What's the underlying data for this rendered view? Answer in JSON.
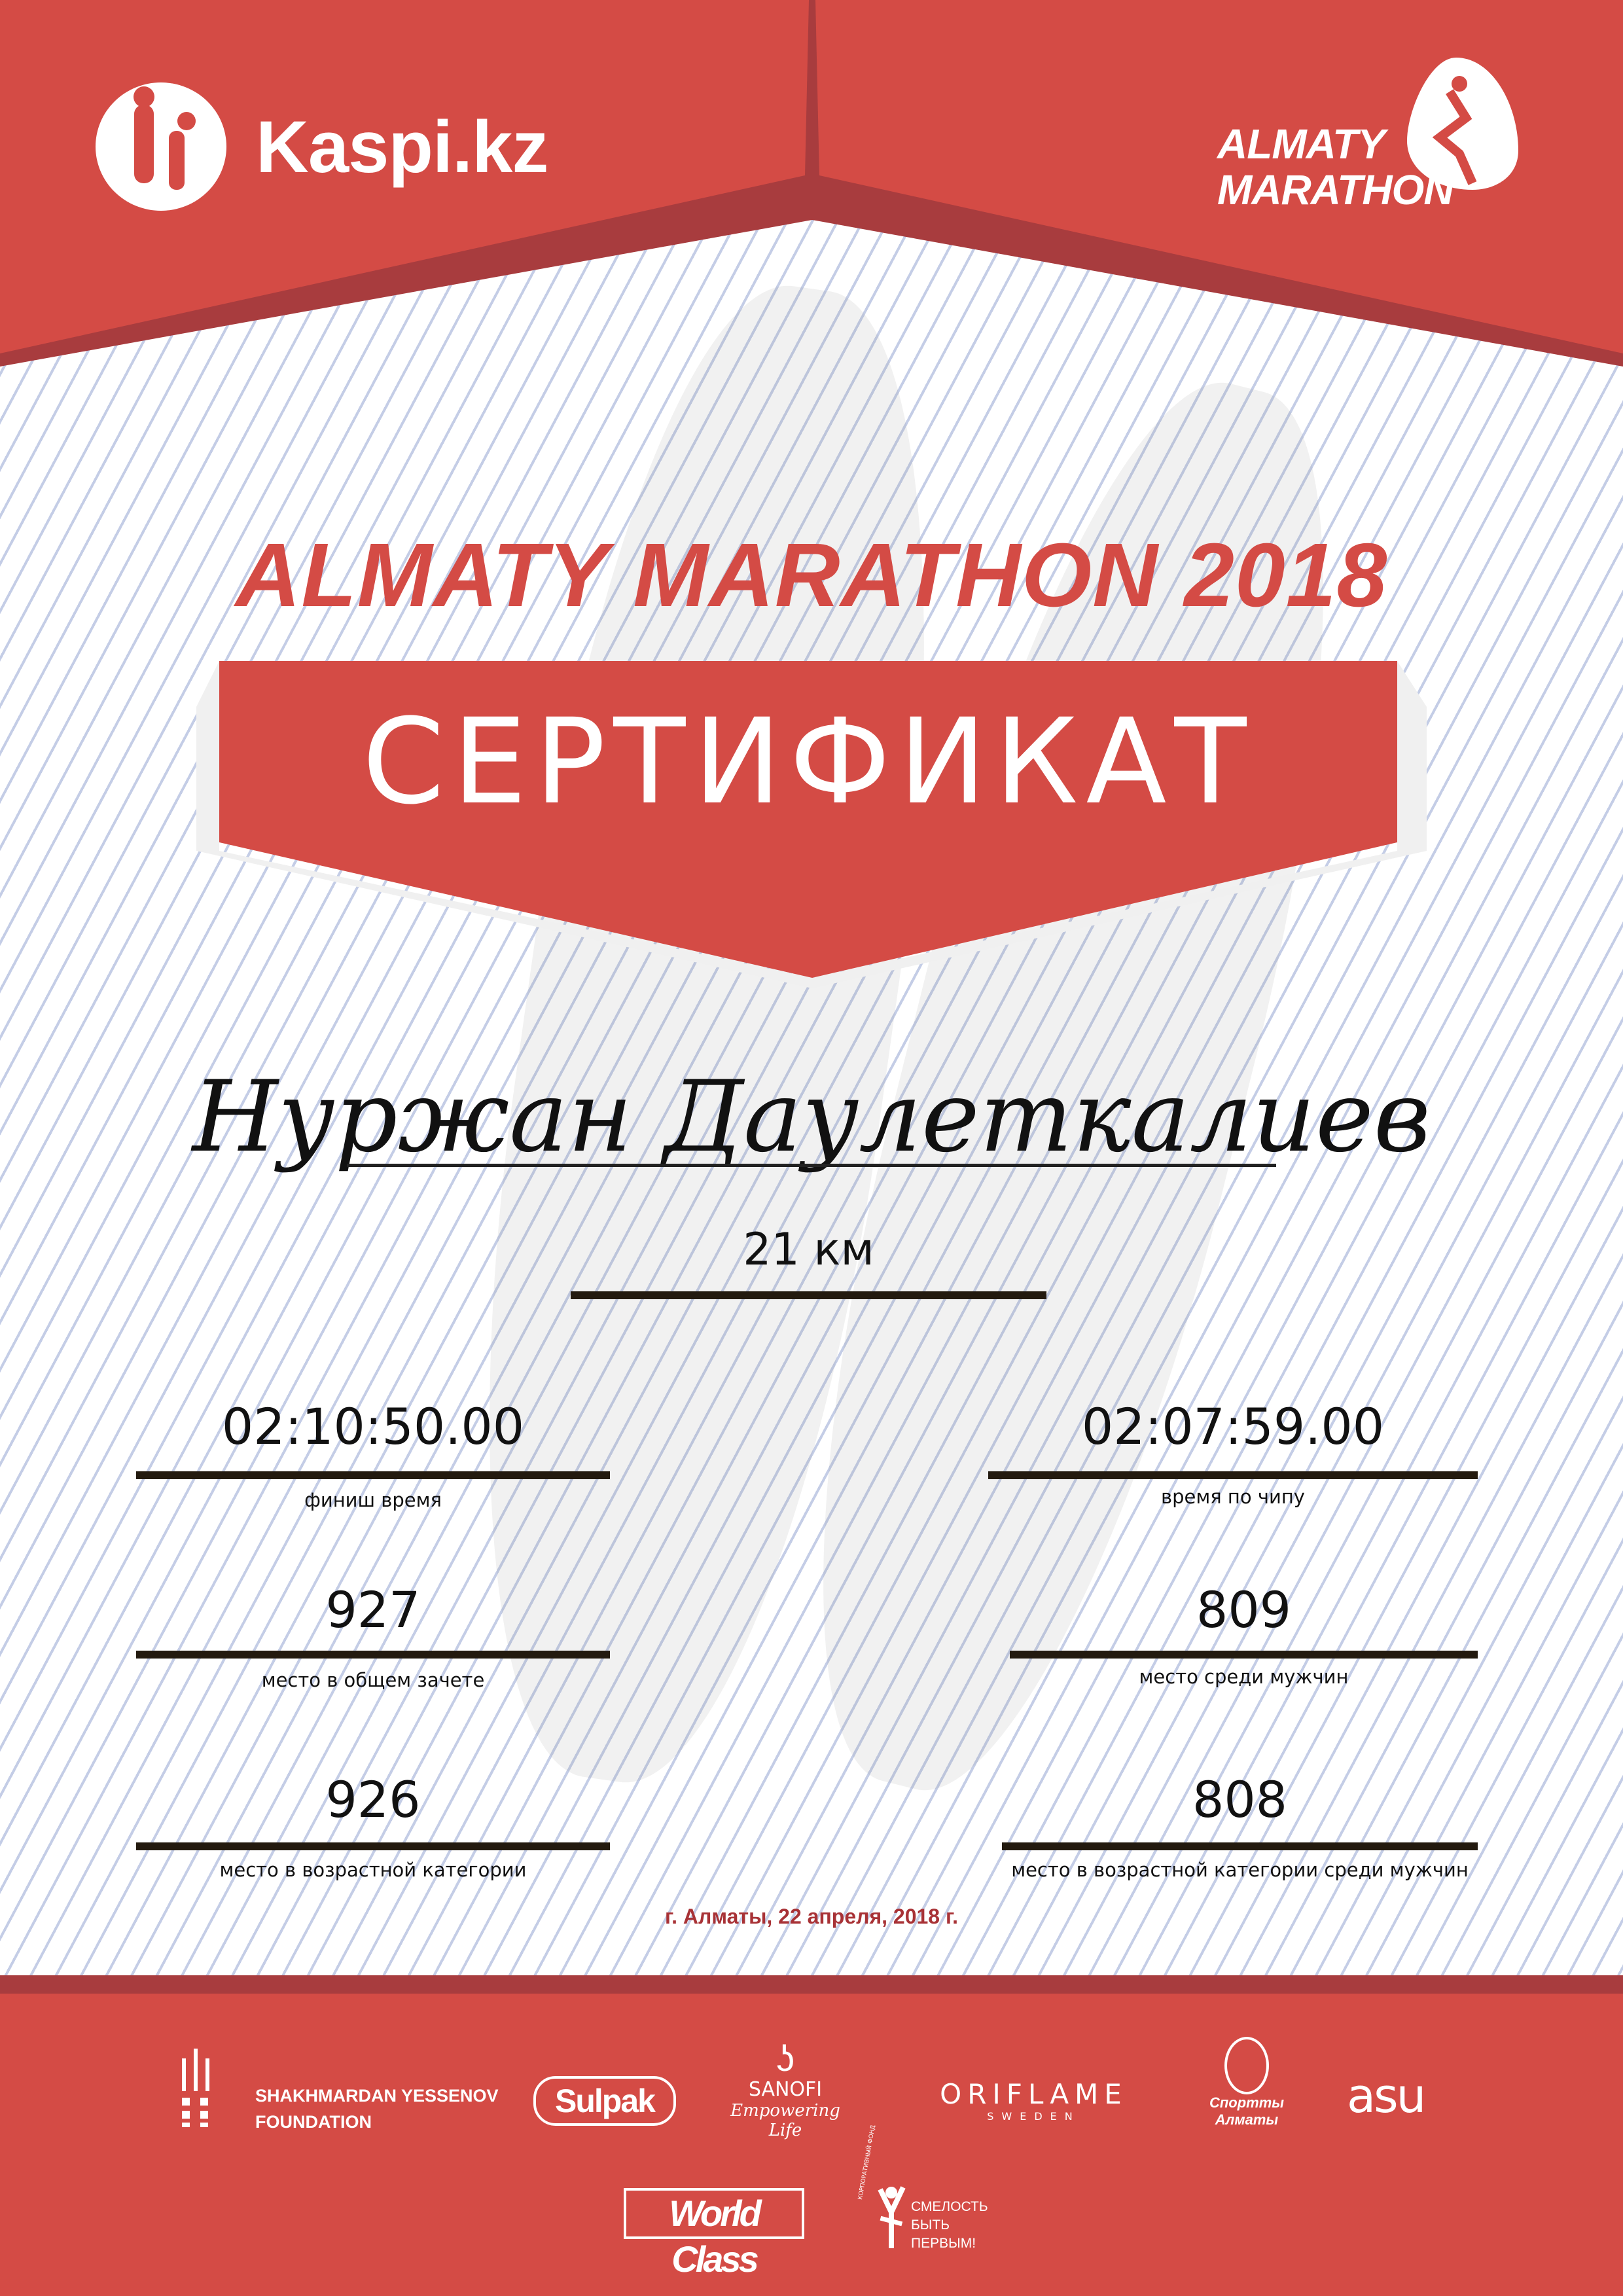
{
  "colors": {
    "brand_red": "#d44b45",
    "dark_red": "#a83c3e",
    "date_red": "#a83236"
  },
  "header": {
    "left_logo": {
      "text": "Kaspi.kz",
      "icon": "kaspi-people-icon"
    },
    "right_logo": {
      "line1": "ALMATY",
      "line2": "MARATHON",
      "icon": "runner-drop-icon"
    }
  },
  "title": "ALMATY MARATHON 2018",
  "certificate_label": "СЕРТИФИКАТ",
  "participant_name": "Нуржан Даулеткалиев",
  "distance": "21 км",
  "results": {
    "finish_time": {
      "value": "02:10:50.00",
      "label": "финиш время"
    },
    "chip_time": {
      "value": "02:07:59.00",
      "label": "время по чипу"
    },
    "overall_place": {
      "value": "927",
      "label": "место в общем зачете"
    },
    "men_place": {
      "value": "809",
      "label": "место среди мужчин"
    },
    "age_place": {
      "value": "926",
      "label": "место в возрастной категории"
    },
    "age_men_place": {
      "value": "808",
      "label": "место в возрастной категории среди мужчин"
    }
  },
  "date": "г. Алматы, 22 апреля, 2018 г.",
  "sponsors": {
    "yessenov": {
      "line1": "SHAKHMARDAN YESSENOV",
      "line2": "FOUNDATION"
    },
    "sulpak": "Sulpak",
    "sanofi": {
      "name": "SANOFI",
      "tagline": "Empowering Life"
    },
    "oriflame": {
      "name": "ORIFLAME",
      "sub": "SWEDEN"
    },
    "sport_almaty": {
      "line1": "Спортты",
      "line2": "Алматы"
    },
    "asu": "asu",
    "world_class": "World Class",
    "courage": {
      "arc": "КОРПОРАТИВНЫЙ ФОНД",
      "line1": "СМЕЛОСТЬ",
      "line2": "БЫТЬ",
      "line3": "ПЕРВЫМ!"
    }
  }
}
